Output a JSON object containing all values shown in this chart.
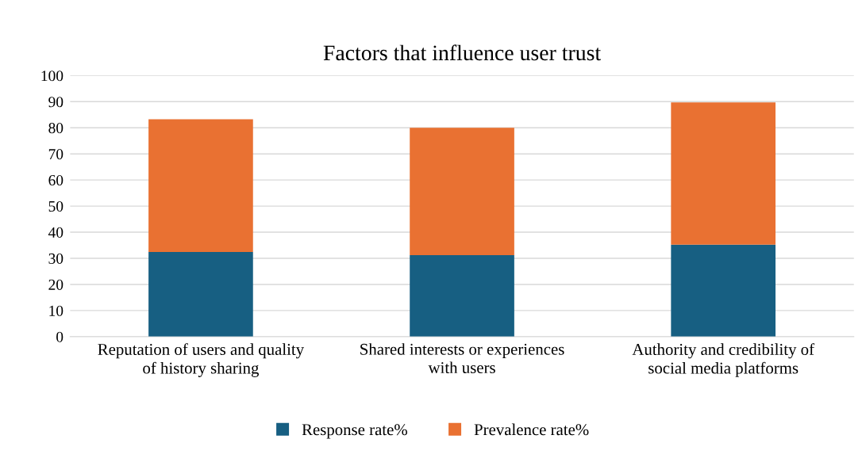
{
  "chart_data": {
    "type": "bar",
    "title": "Factors that influence user trust",
    "categories": [
      "Reputation of users and quality of history sharing",
      "Shared interests or experiences with users",
      "Authority and credibility of social media platforms"
    ],
    "stacked": true,
    "series": [
      {
        "name": "Response rate%",
        "color": "#175f82",
        "values": [
          32.4,
          31.2,
          35.2
        ]
      },
      {
        "name": "Prevalence rate%",
        "color": "#e97132",
        "values": [
          50.9,
          48.8,
          54.5
        ]
      }
    ],
    "ylim": [
      0,
      100
    ],
    "yticks": [
      0,
      10,
      20,
      30,
      40,
      50,
      60,
      70,
      80,
      90,
      100
    ],
    "grid": "y",
    "legend": "bottom"
  }
}
